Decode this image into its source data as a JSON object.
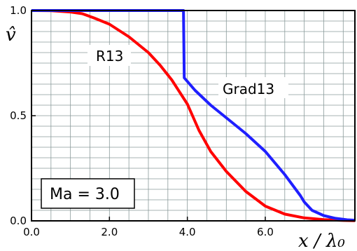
{
  "chart_data": {
    "type": "line",
    "xlabel": "x / λ₀",
    "ylabel": "v̂",
    "xlim": [
      0,
      8.3
    ],
    "ylim": [
      0,
      1.0
    ],
    "x_ticks": [
      {
        "value": 0,
        "label": "0.0"
      },
      {
        "value": 2,
        "label": "2.0"
      },
      {
        "value": 4,
        "label": "4.0"
      },
      {
        "value": 6,
        "label": "6.0"
      }
    ],
    "y_ticks": [
      {
        "value": 0,
        "label": "0.0"
      },
      {
        "value": 0.5,
        "label": "0.5"
      },
      {
        "value": 1.0,
        "label": "1.0"
      }
    ],
    "grid": true,
    "annotation": "Ma = 3.0",
    "series": [
      {
        "name": "R13",
        "color": "#ff0000",
        "points": [
          [
            0.0,
            1.0
          ],
          [
            0.5,
            0.999
          ],
          [
            1.0,
            0.993
          ],
          [
            1.3,
            0.985
          ],
          [
            1.6,
            0.965
          ],
          [
            2.0,
            0.935
          ],
          [
            2.5,
            0.875
          ],
          [
            3.0,
            0.8
          ],
          [
            3.3,
            0.74
          ],
          [
            3.6,
            0.67
          ],
          [
            4.0,
            0.555
          ],
          [
            4.3,
            0.43
          ],
          [
            4.6,
            0.33
          ],
          [
            5.0,
            0.235
          ],
          [
            5.5,
            0.14
          ],
          [
            6.0,
            0.07
          ],
          [
            6.5,
            0.032
          ],
          [
            7.0,
            0.014
          ],
          [
            7.5,
            0.006
          ],
          [
            8.0,
            0.002
          ],
          [
            8.3,
            0.001
          ]
        ]
      },
      {
        "name": "Grad13",
        "color": "#1f1fff",
        "points": [
          [
            0.0,
            1.0
          ],
          [
            3.9,
            1.0
          ],
          [
            3.92,
            0.68
          ],
          [
            4.2,
            0.62
          ],
          [
            4.6,
            0.55
          ],
          [
            5.0,
            0.49
          ],
          [
            5.5,
            0.415
          ],
          [
            6.0,
            0.33
          ],
          [
            6.5,
            0.22
          ],
          [
            6.9,
            0.12
          ],
          [
            7.0,
            0.09
          ],
          [
            7.2,
            0.05
          ],
          [
            7.5,
            0.025
          ],
          [
            7.8,
            0.012
          ],
          [
            8.1,
            0.005
          ],
          [
            8.3,
            0.003
          ]
        ]
      }
    ]
  }
}
